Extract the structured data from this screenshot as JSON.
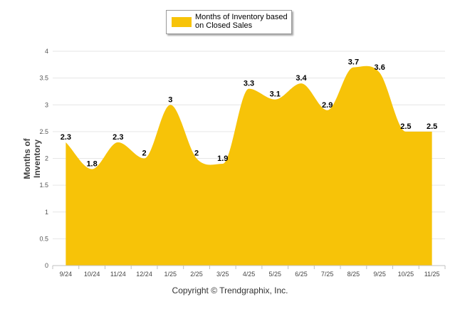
{
  "chart_data": {
    "type": "area",
    "categories": [
      "9/24",
      "10/24",
      "11/24",
      "12/24",
      "1/25",
      "2/25",
      "3/25",
      "4/25",
      "5/25",
      "6/25",
      "7/25",
      "8/25",
      "9/25",
      "10/25",
      "11/25"
    ],
    "series": [
      {
        "name": "Months of Inventory based on Closed Sales",
        "values": [
          2.3,
          1.8,
          2.3,
          2,
          3,
          2,
          1.9,
          3.3,
          3.1,
          3.4,
          2.9,
          3.7,
          3.6,
          2.5,
          2.5
        ],
        "color": "#F7C308"
      }
    ],
    "ylabel": "Months of Inventory",
    "xlabel": "",
    "ylim": [
      0,
      4
    ],
    "yticks": [
      "0",
      "0.5",
      "1",
      "1.5",
      "2",
      "2.5",
      "3",
      "3.5",
      "4"
    ],
    "grid": true,
    "legend_position": "top-center",
    "data_labels": true
  },
  "legend": {
    "label": "Months of Inventory based on Closed Sales"
  },
  "footer": {
    "copyright": "Copyright © Trendgraphix, Inc."
  }
}
